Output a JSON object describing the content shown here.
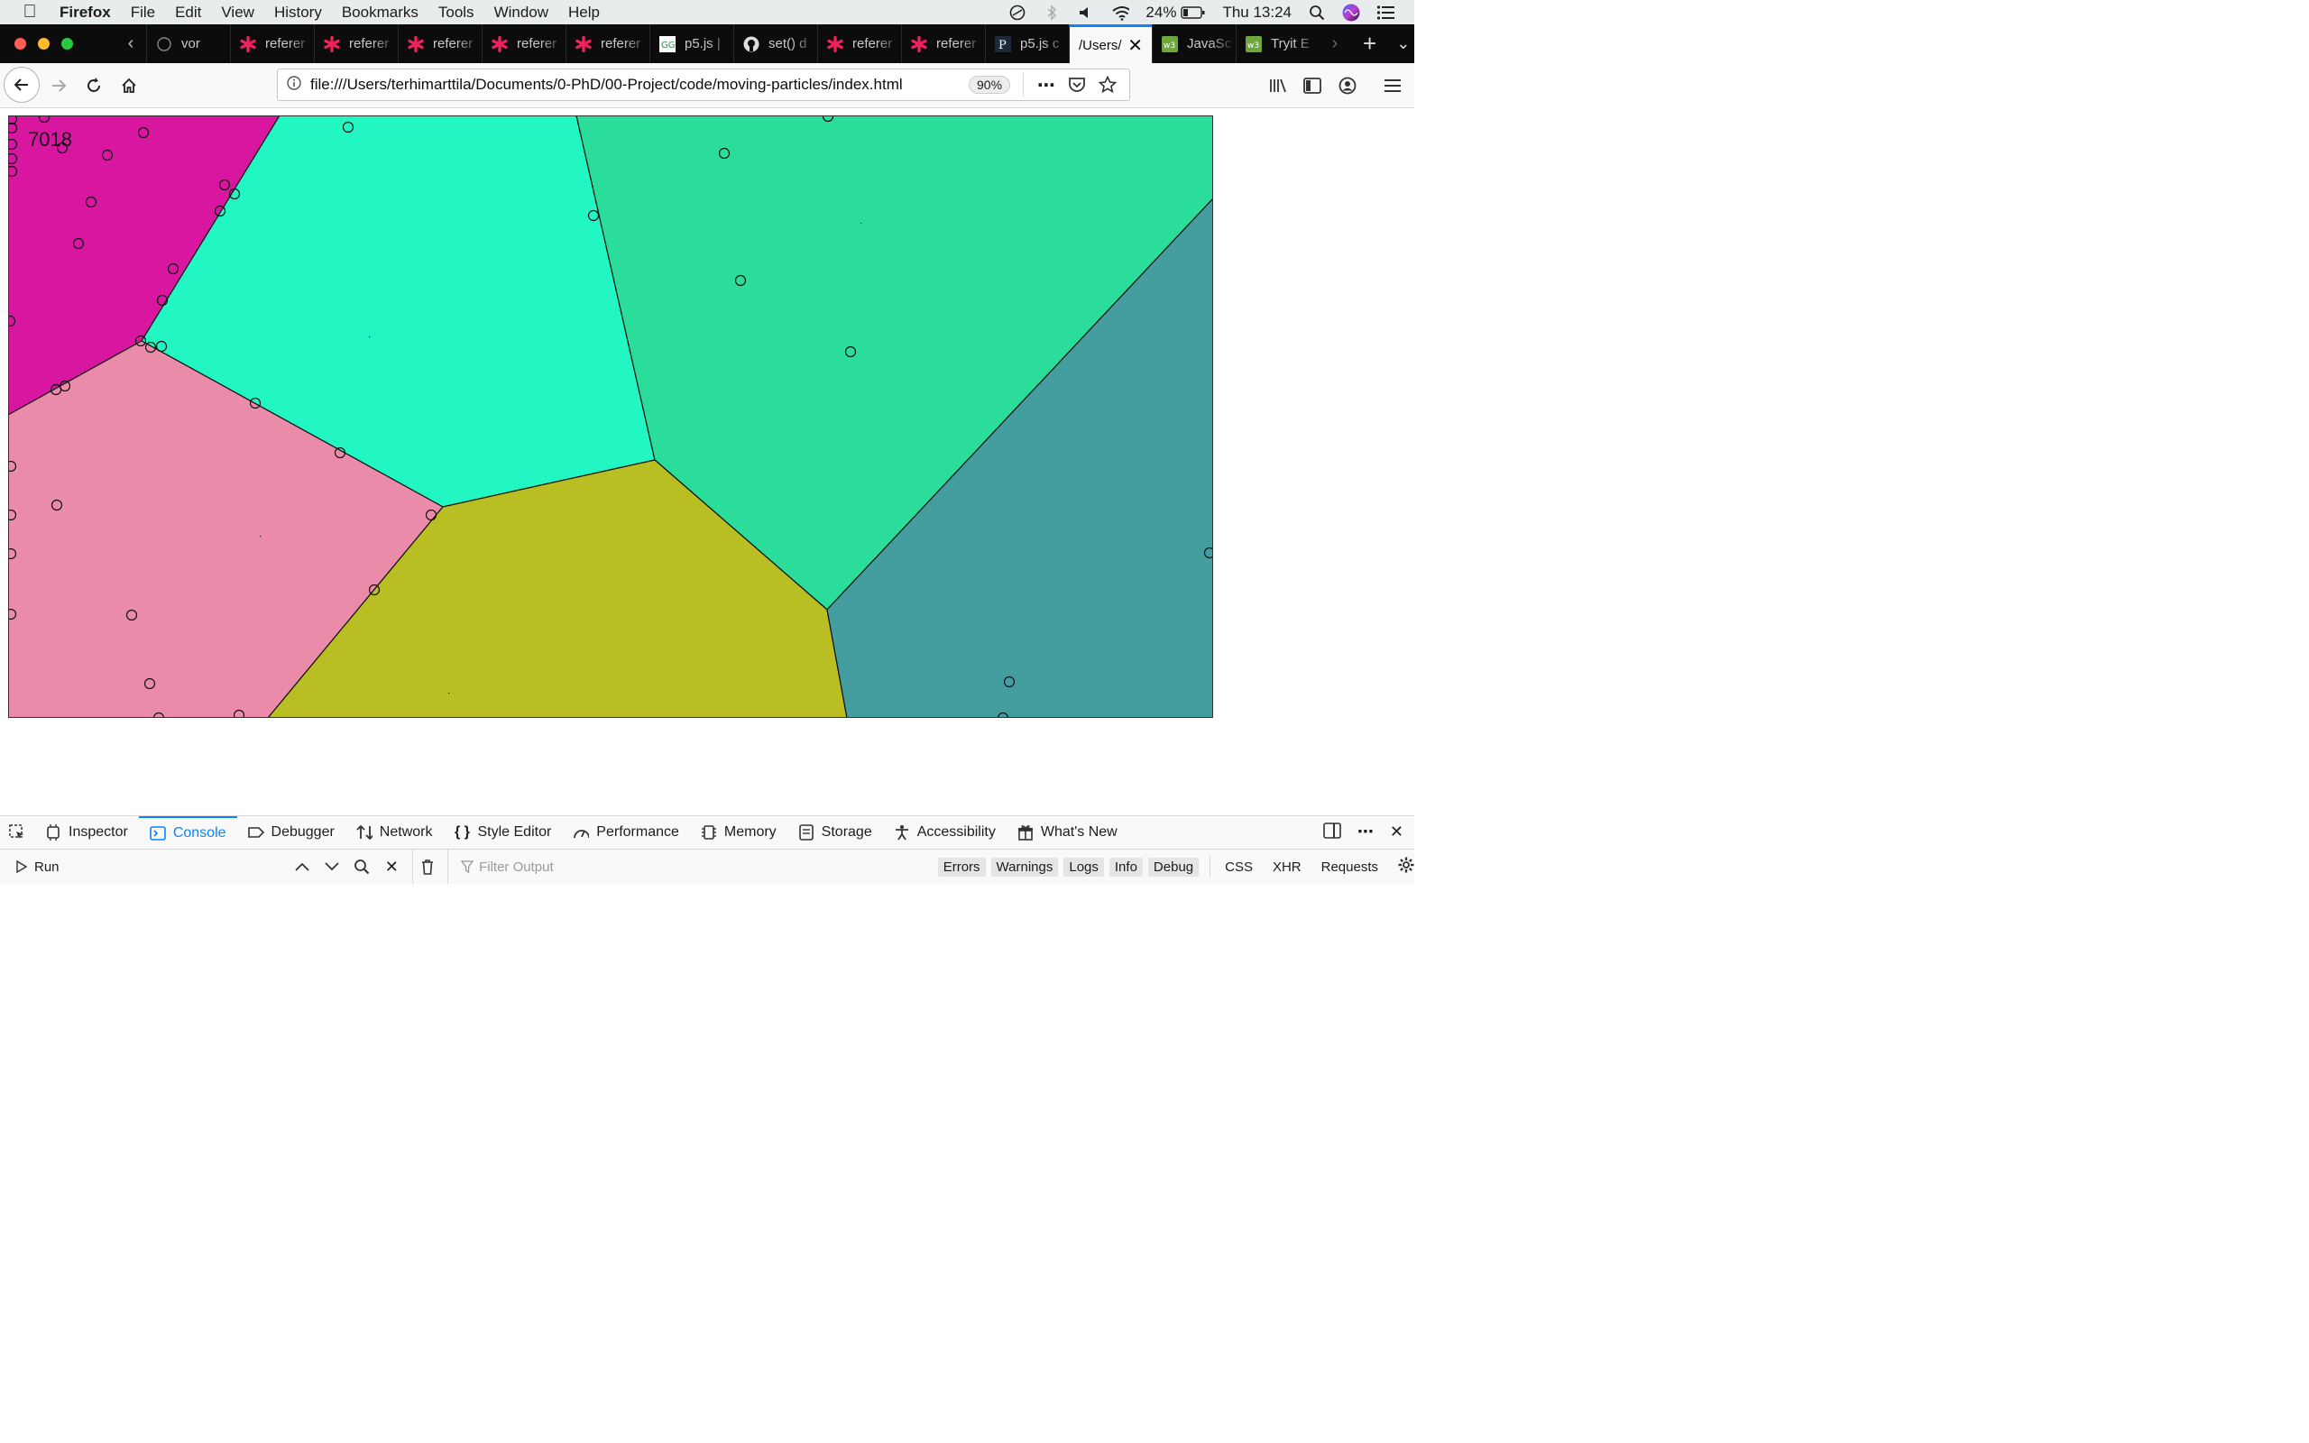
{
  "menubar": {
    "app_name": "Firefox",
    "items": [
      "File",
      "Edit",
      "View",
      "History",
      "Bookmarks",
      "Tools",
      "Window",
      "Help"
    ],
    "battery": "24%",
    "clock": "Thu 13:24"
  },
  "tabs": [
    {
      "title": "vor",
      "icon": "generic"
    },
    {
      "title": "referer",
      "icon": "p5-asterisk"
    },
    {
      "title": "referer",
      "icon": "p5-asterisk"
    },
    {
      "title": "referer",
      "icon": "p5-asterisk"
    },
    {
      "title": "referer",
      "icon": "p5-asterisk"
    },
    {
      "title": "referer",
      "icon": "p5-asterisk"
    },
    {
      "title": "p5.js |",
      "icon": "geeks"
    },
    {
      "title": "set() d",
      "icon": "github"
    },
    {
      "title": "referer",
      "icon": "p5-asterisk"
    },
    {
      "title": "referer",
      "icon": "p5-asterisk"
    },
    {
      "title": "p5.js c",
      "icon": "processing"
    },
    {
      "title": "/Users/",
      "icon": "none",
      "active": true
    },
    {
      "title": "JavaSc",
      "icon": "w3"
    },
    {
      "title": "Tryit E",
      "icon": "w3"
    }
  ],
  "navbar": {
    "url": "file:///Users/terhimarttila/Documents/0-PhD/00-Project/code/moving-particles/index.html",
    "zoom": "90%"
  },
  "canvas": {
    "counter": "7018",
    "regions": [
      {
        "name": "magenta-cell",
        "color": "#d916a0"
      },
      {
        "name": "cyan-cell",
        "color": "#22f7c3"
      },
      {
        "name": "green-cell",
        "color": "#2bdd9b"
      },
      {
        "name": "pink-cell",
        "color": "#e98ba9"
      },
      {
        "name": "olive-cell",
        "color": "#b9be22"
      },
      {
        "name": "teal-cell",
        "color": "#449ea0"
      }
    ]
  },
  "devtools": {
    "tabs": [
      "Inspector",
      "Console",
      "Debugger",
      "Network",
      "Style Editor",
      "Performance",
      "Memory",
      "Storage",
      "Accessibility",
      "What's New"
    ],
    "active_tab": "Console",
    "run_label": "Run",
    "filter_placeholder": "Filter Output",
    "level_buttons": [
      "Errors",
      "Warnings",
      "Logs",
      "Info",
      "Debug"
    ],
    "type_buttons": [
      "CSS",
      "XHR",
      "Requests"
    ]
  }
}
